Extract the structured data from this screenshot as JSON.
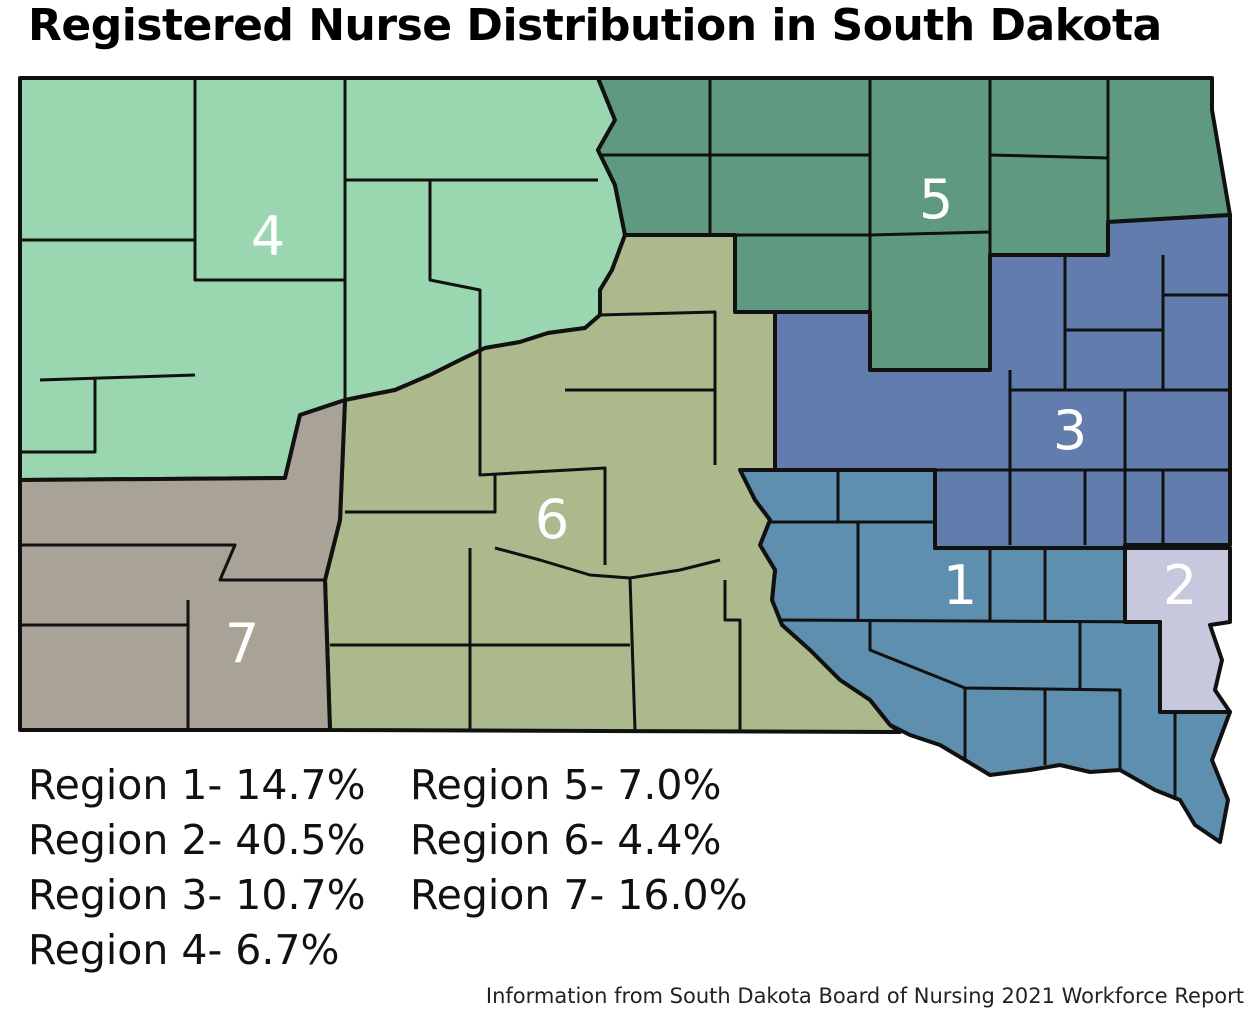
{
  "title": "Registered Nurse Distribution in South Dakota",
  "regions": [
    {
      "id": "1",
      "label": "1",
      "legend": "Region 1- 14.7%",
      "percent": 14.7,
      "color": "#5f8fae"
    },
    {
      "id": "2",
      "label": "2",
      "legend": "Region 2- 40.5%",
      "percent": 40.5,
      "color": "#c7c7de"
    },
    {
      "id": "3",
      "label": "3",
      "legend": "Region 3- 10.7%",
      "percent": 10.7,
      "color": "#617cad"
    },
    {
      "id": "4",
      "label": "4",
      "legend": "Region 4- 6.7%",
      "percent": 6.7,
      "color": "#9ad6b0"
    },
    {
      "id": "5",
      "label": "5",
      "legend": "Region 5- 7.0%",
      "percent": 7.0,
      "color": "#5f9a80"
    },
    {
      "id": "6",
      "label": "6",
      "legend": "Region 6- 4.4%",
      "percent": 4.4,
      "color": "#abb98d"
    },
    {
      "id": "7",
      "label": "7",
      "legend": "Region 7- 16.0%",
      "percent": 16.0,
      "color": "#a8a396"
    }
  ],
  "source": "Information from South Dakota Board of Nursing 2021 Workforce Report"
}
